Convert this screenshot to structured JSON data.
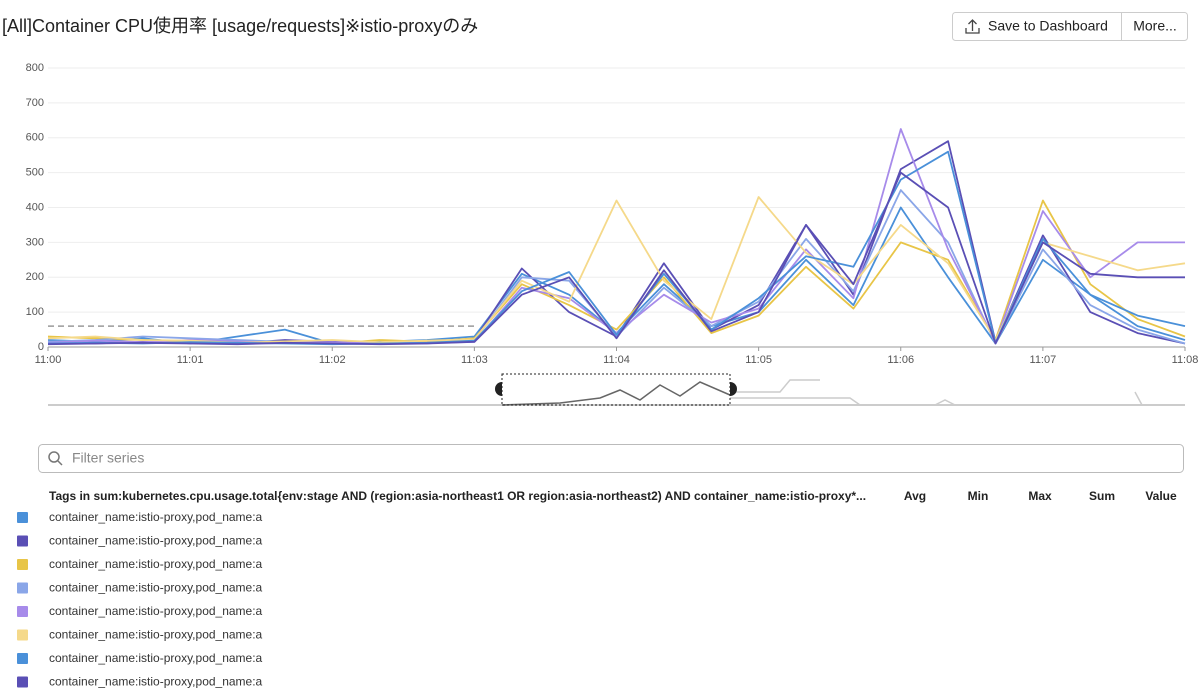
{
  "header": {
    "title": "[All]Container CPU使用率 [usage/requests]※istio-proxyのみ",
    "buttons": [
      "Save to Dashboard",
      "More..."
    ]
  },
  "chart_data": {
    "type": "line",
    "categories": [
      "11:00",
      null,
      null,
      "11:01",
      null,
      null,
      "11:02",
      null,
      null,
      "11:03",
      null,
      null,
      "11:04",
      null,
      null,
      "11:05",
      null,
      null,
      "11:06",
      null,
      null,
      "11:07",
      null,
      null,
      "11:08"
    ],
    "ylim": [
      0,
      800
    ],
    "yticks": [
      0,
      100,
      200,
      300,
      400,
      500,
      600,
      700,
      800
    ],
    "grid": true,
    "markers": [
      {
        "value": 60,
        "color": "#999999"
      }
    ],
    "series": [
      {
        "name": "container_name:istio-proxy,pod_name:a",
        "color": "#4a90d9",
        "values": [
          20,
          15,
          25,
          10,
          30,
          50,
          10,
          15,
          20,
          30,
          210,
          150,
          40,
          180,
          60,
          100,
          250,
          120,
          400,
          200,
          10,
          250,
          150,
          60,
          20
        ]
      },
      {
        "name": "container_name:istio-proxy,pod_name:a",
        "color": "#5a4fb5",
        "values": [
          10,
          10,
          15,
          12,
          10,
          20,
          15,
          10,
          15,
          20,
          225,
          100,
          30,
          240,
          50,
          120,
          350,
          150,
          510,
          590,
          15,
          320,
          100,
          40,
          10
        ]
      },
      {
        "name": "container_name:istio-proxy,pod_name:a",
        "color": "#e8c547",
        "values": [
          30,
          25,
          20,
          15,
          10,
          15,
          10,
          20,
          15,
          25,
          180,
          120,
          50,
          200,
          40,
          90,
          230,
          110,
          300,
          250,
          20,
          420,
          180,
          80,
          30
        ]
      },
      {
        "name": "container_name:istio-proxy,pod_name:a",
        "color": "#8aa6e8",
        "values": [
          15,
          20,
          30,
          25,
          20,
          15,
          10,
          12,
          10,
          20,
          200,
          190,
          30,
          170,
          60,
          130,
          310,
          160,
          450,
          300,
          10,
          280,
          120,
          50,
          10
        ]
      },
      {
        "name": "container_name:istio-proxy,pod_name:a",
        "color": "#a78bea",
        "values": [
          12,
          18,
          14,
          20,
          16,
          12,
          14,
          10,
          12,
          15,
          170,
          140,
          40,
          150,
          70,
          110,
          280,
          140,
          625,
          280,
          15,
          390,
          200,
          300,
          300
        ]
      },
      {
        "name": "container_name:istio-proxy,pod_name:a",
        "color": "#f5d98a",
        "values": [
          25,
          30,
          20,
          18,
          12,
          16,
          20,
          14,
          18,
          22,
          190,
          130,
          420,
          190,
          80,
          430,
          270,
          180,
          350,
          240,
          20,
          300,
          260,
          220,
          240
        ]
      },
      {
        "name": "container_name:istio-proxy,pod_name:a",
        "color": "#4a90d9",
        "values": [
          10,
          12,
          10,
          14,
          12,
          10,
          8,
          10,
          12,
          18,
          160,
          215,
          35,
          210,
          50,
          140,
          260,
          230,
          480,
          560,
          12,
          310,
          150,
          90,
          60
        ]
      },
      {
        "name": "container_name:istio-proxy,pod_name:a",
        "color": "#5a4fb5",
        "values": [
          8,
          10,
          12,
          10,
          8,
          12,
          10,
          8,
          10,
          15,
          150,
          200,
          25,
          220,
          45,
          100,
          350,
          180,
          500,
          400,
          10,
          300,
          210,
          200,
          200
        ]
      }
    ]
  },
  "filter": {
    "placeholder": "Filter series"
  },
  "table": {
    "tags_header": "Tags in sum:kubernetes.cpu.usage.total{env:stage AND (region:asia-northeast1 OR region:asia-northeast2) AND container_name:istio-proxy*...",
    "columns": [
      "Avg",
      "Min",
      "Max",
      "Sum",
      "Value"
    ]
  }
}
